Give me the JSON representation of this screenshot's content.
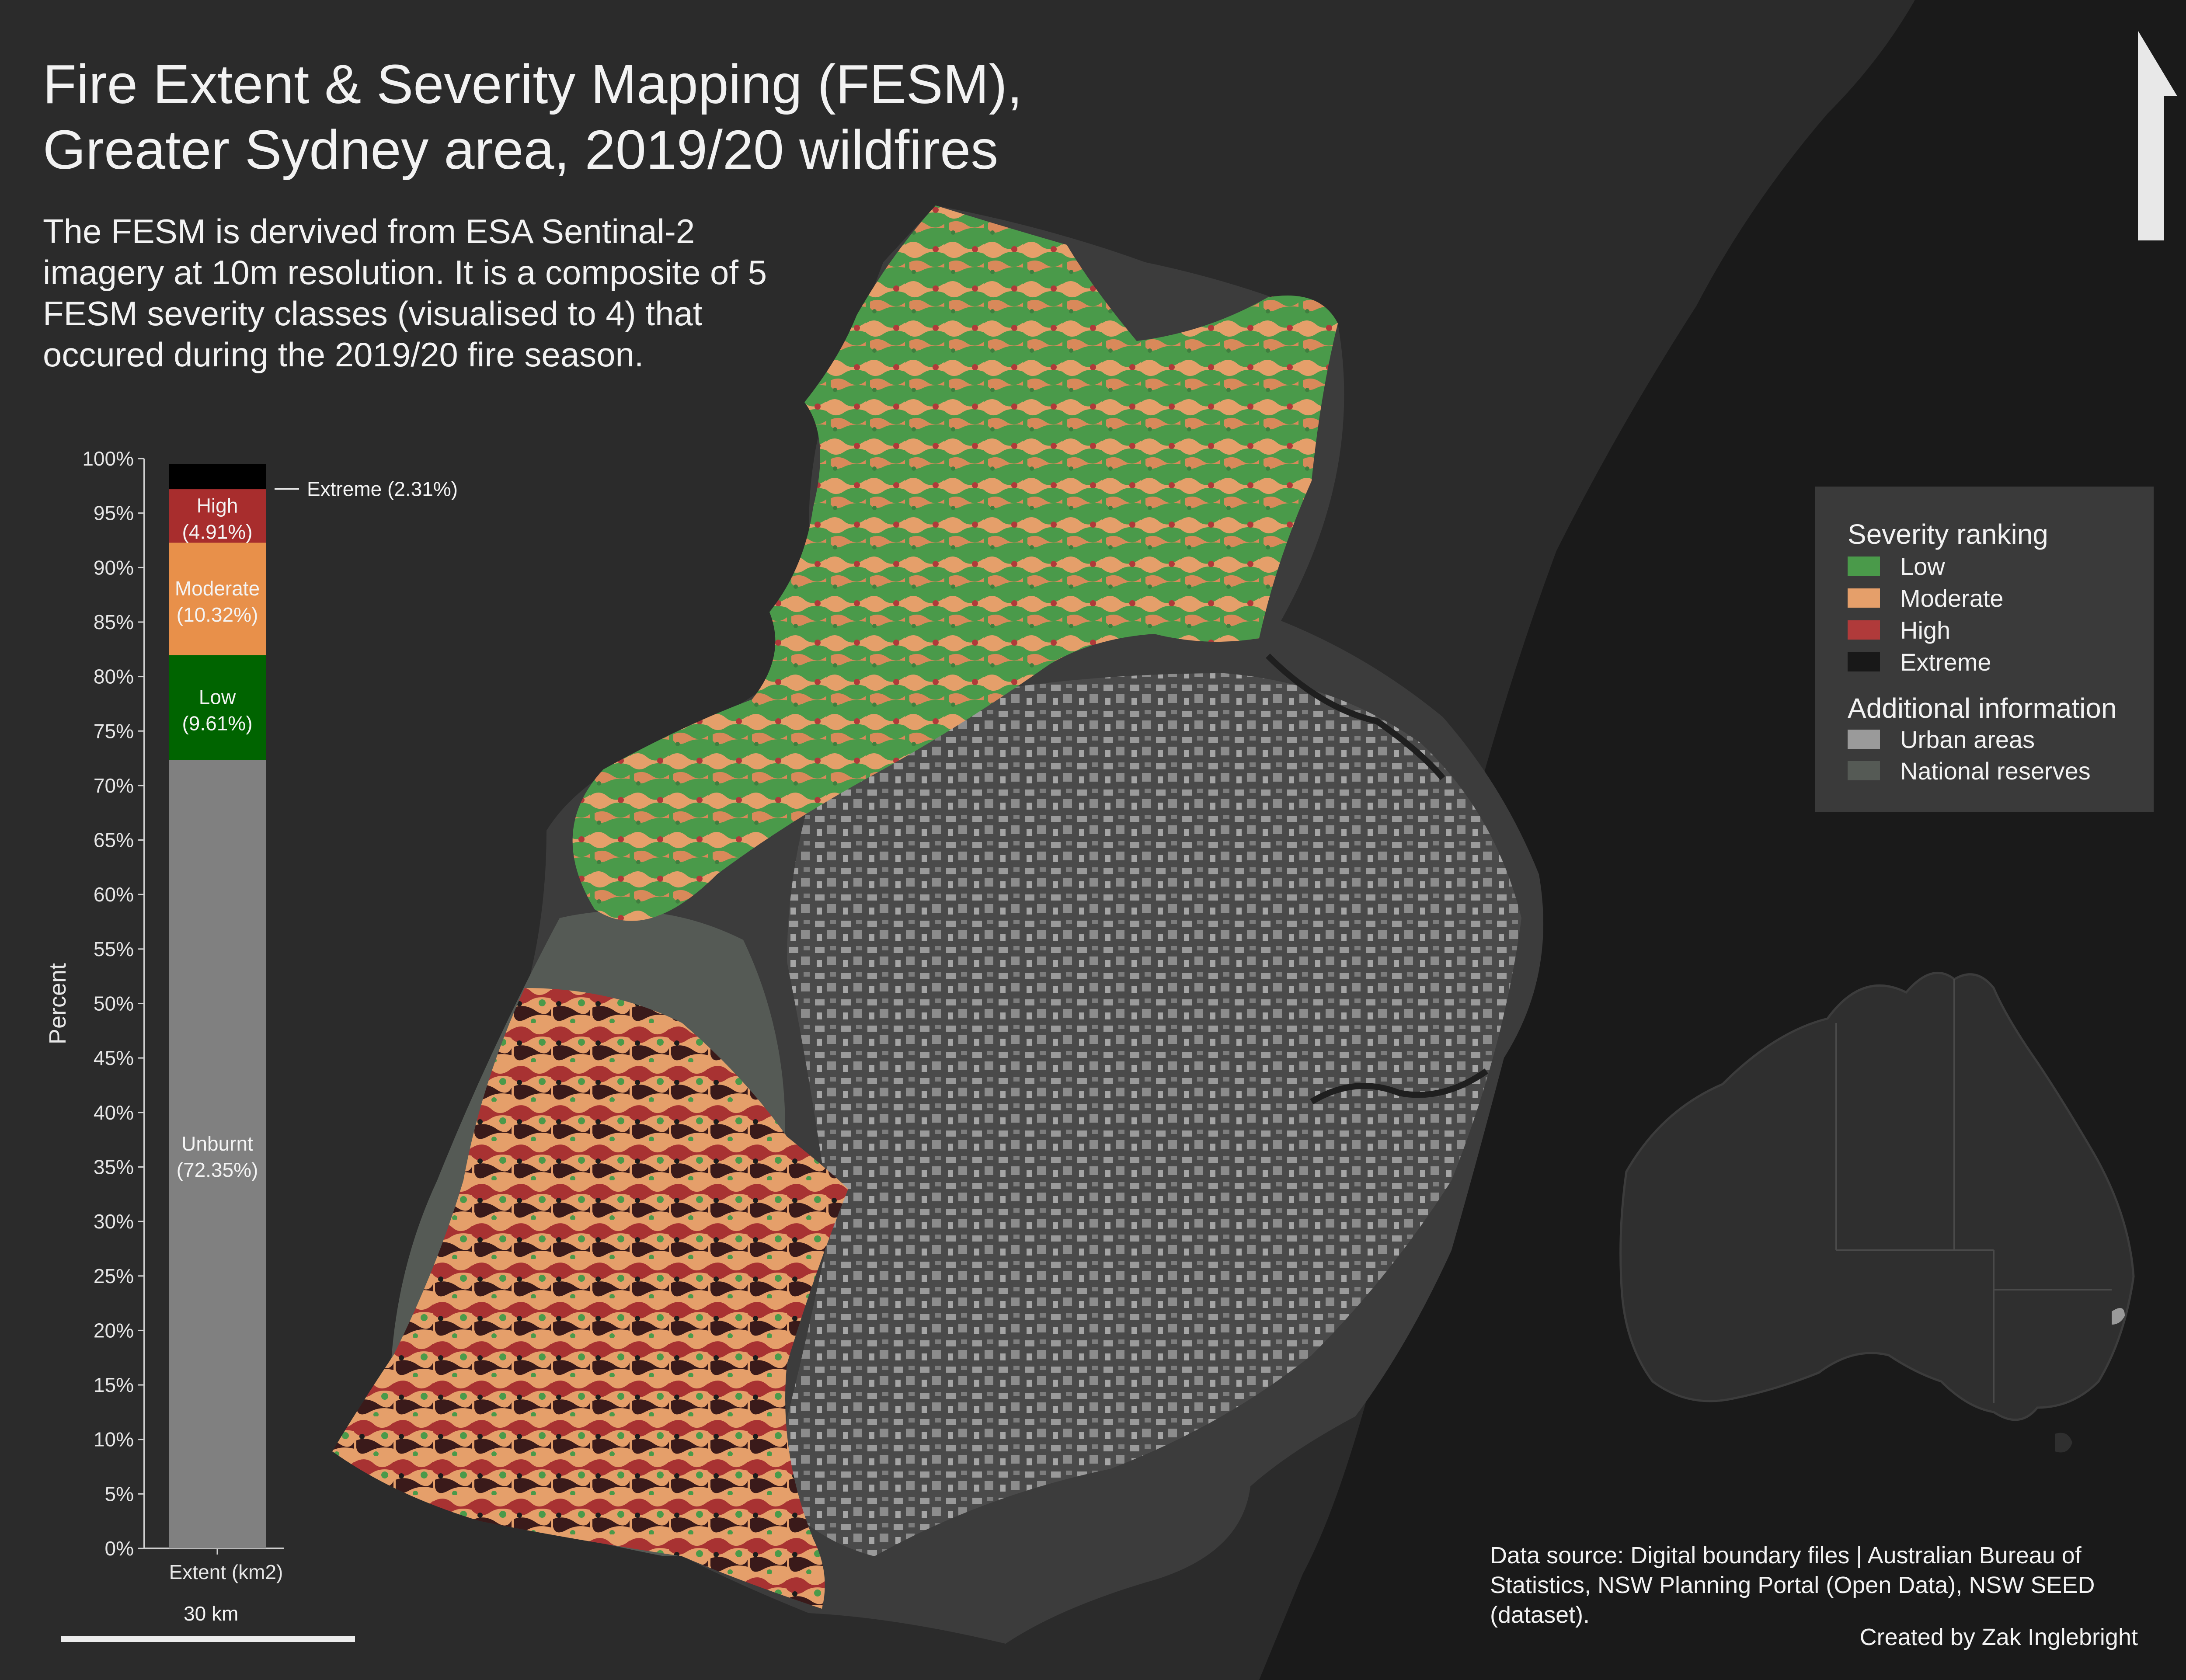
{
  "title_lines": [
    "Fire Extent & Severity Mapping (FESM),",
    "Greater Sydney area, 2019/20 wildfires"
  ],
  "subtitle_lines": [
    "The FESM is dervived from ESA Sentinal-2",
    "imagery at 10m resolution. It is a composite of 5",
    "FESM severity classes (visualised to 4) that",
    "occured during the 2019/20 fire season."
  ],
  "chart_data": {
    "type": "bar",
    "stacked": true,
    "categories": [
      "Extent (km2)"
    ],
    "xlabel": "Extent (km2)",
    "ylabel": "Percent",
    "ylim": [
      0,
      100
    ],
    "yticks": [
      0,
      5,
      10,
      15,
      20,
      25,
      30,
      35,
      40,
      45,
      50,
      55,
      60,
      65,
      70,
      75,
      80,
      85,
      90,
      95,
      100
    ],
    "series": [
      {
        "name": "Unburnt",
        "value": 72.35,
        "label": [
          "Unburnt",
          "(72.35%)"
        ],
        "color": "#808080"
      },
      {
        "name": "Low",
        "value": 9.61,
        "label": [
          "Low",
          "(9.61%)"
        ],
        "color": "#006400"
      },
      {
        "name": "Moderate",
        "value": 10.32,
        "label": [
          "Moderate",
          "(10.32%)"
        ],
        "color": "#e8904a"
      },
      {
        "name": "High",
        "value": 4.91,
        "label": [
          "High",
          "(4.91%)"
        ],
        "color": "#a82d2d"
      },
      {
        "name": "Extreme",
        "value": 2.31,
        "label": [
          "Extreme (2.31%)"
        ],
        "color": "#000000"
      }
    ]
  },
  "legend": {
    "severity_heading": "Severity ranking",
    "severity_items": [
      {
        "label": "Low",
        "color": "#4a9a4a"
      },
      {
        "label": "Moderate",
        "color": "#e59f6a"
      },
      {
        "label": "High",
        "color": "#b03a3a"
      },
      {
        "label": "Extreme",
        "color": "#181818"
      }
    ],
    "additional_heading": "Additional information",
    "additional_items": [
      {
        "label": "Urban areas",
        "color": "#9a9a9a"
      },
      {
        "label": "National reserves",
        "color": "#555a55"
      }
    ]
  },
  "scale_bar": {
    "label": "30 km"
  },
  "data_source": "Data source: Digital boundary files | Australian Bureau of Statistics, NSW Planning Portal (Open Data), NSW SEED (dataset).",
  "credit": "Created by Zak Inglebright",
  "map_colors": {
    "background": "#2b2b2b",
    "ocean": "#1a1a1a",
    "low": "#4a9a4a",
    "moderate": "#e59f6a",
    "high": "#b03a3a",
    "extreme": "#181818",
    "urban": "#9a9a9a",
    "reserves": "#555a55",
    "region": "#3c3c3c"
  }
}
